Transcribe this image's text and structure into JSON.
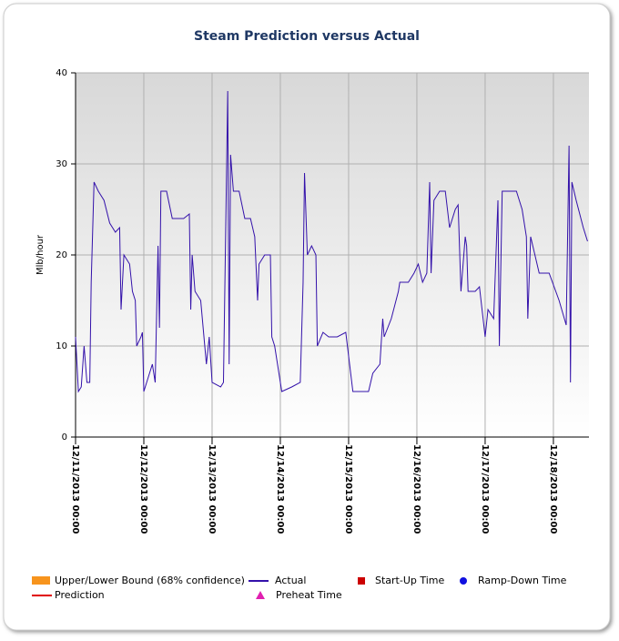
{
  "chart_data": {
    "type": "line",
    "title": "Steam Prediction versus Actual",
    "y_label": "Mlb/hour",
    "xlim": [
      "12/11/2013 00:00",
      "12/18/2013 12:30"
    ],
    "xticks": [
      "12/11/2013 00:00",
      "12/12/2013 00:00",
      "12/13/2013 00:00",
      "12/14/2013 00:00",
      "12/15/2013 00:00",
      "12/16/2013 00:00",
      "12/17/2013 00:00",
      "12/18/2013 00:00"
    ],
    "ylim": [
      0,
      40
    ],
    "yticks": [
      0,
      10,
      20,
      30,
      40
    ],
    "grid": true,
    "x": [
      "12/11/2013 00:00",
      "12/11/2013 01:00",
      "12/11/2013 02:00",
      "12/11/2013 03:00",
      "12/11/2013 04:00",
      "12/11/2013 05:00",
      "12/11/2013 05:30",
      "12/11/2013 06:30",
      "12/11/2013 08:00",
      "12/11/2013 10:00",
      "12/11/2013 12:00",
      "12/11/2013 14:00",
      "12/11/2013 15:30",
      "12/11/2013 16:00",
      "12/11/2013 17:00",
      "12/11/2013 19:00",
      "12/11/2013 20:00",
      "12/11/2013 21:00",
      "12/11/2013 21:30",
      "12/11/2013 23:00",
      "12/11/2013 23:30",
      "12/12/2013 00:00",
      "12/12/2013 02:00",
      "12/12/2013 03:00",
      "12/12/2013 04:00",
      "12/12/2013 05:00",
      "12/12/2013 05:30",
      "12/12/2013 06:00",
      "12/12/2013 08:00",
      "12/12/2013 10:00",
      "12/12/2013 14:00",
      "12/12/2013 16:00",
      "12/12/2013 16:30",
      "12/12/2013 17:00",
      "12/12/2013 18:00",
      "12/12/2013 20:00",
      "12/12/2013 22:00",
      "12/12/2013 23:00",
      "12/13/2013 00:00",
      "12/13/2013 03:00",
      "12/13/2013 04:00",
      "12/13/2013 05:30",
      "12/13/2013 06:00",
      "12/13/2013 06:30",
      "12/13/2013 07:30",
      "12/13/2013 09:30",
      "12/13/2013 11:30",
      "12/13/2013 13:30",
      "12/13/2013 15:00",
      "12/13/2013 16:00",
      "12/13/2013 16:30",
      "12/13/2013 18:30",
      "12/13/2013 20:30",
      "12/13/2013 21:00",
      "12/13/2013 22:00",
      "12/14/2013 00:30",
      "12/14/2013 04:00",
      "12/14/2013 07:00",
      "12/14/2013 08:00",
      "12/14/2013 08:30",
      "12/14/2013 09:30",
      "12/14/2013 11:00",
      "12/14/2013 12:30",
      "12/14/2013 13:00",
      "12/14/2013 15:00",
      "12/14/2013 17:00",
      "12/14/2013 20:00",
      "12/14/2013 23:00",
      "12/15/2013 01:30",
      "12/15/2013 04:00",
      "12/15/2013 07:00",
      "12/15/2013 08:30",
      "12/15/2013 11:00",
      "12/15/2013 12:00",
      "12/15/2013 12:30",
      "12/15/2013 15:00",
      "12/15/2013 17:30",
      "12/15/2013 18:00",
      "12/15/2013 21:00",
      "12/15/2013 23:00",
      "12/16/2013 00:30",
      "12/16/2013 02:00",
      "12/16/2013 03:30",
      "12/16/2013 04:30",
      "12/16/2013 05:00",
      "12/16/2013 06:00",
      "12/16/2013 08:00",
      "12/16/2013 10:00",
      "12/16/2013 11:30",
      "12/16/2013 13:30",
      "12/16/2013 14:30",
      "12/16/2013 15:30",
      "12/16/2013 17:00",
      "12/16/2013 17:30",
      "12/16/2013 18:00",
      "12/16/2013 20:30",
      "12/16/2013 22:00",
      "12/17/2013 00:00",
      "12/17/2013 01:00",
      "12/17/2013 03:00",
      "12/17/2013 04:30",
      "12/17/2013 05:00",
      "12/17/2013 06:00",
      "12/17/2013 08:30",
      "12/17/2013 11:00",
      "12/17/2013 13:00",
      "12/17/2013 14:30",
      "12/17/2013 15:00",
      "12/17/2013 16:00",
      "12/17/2013 17:30",
      "12/17/2013 19:00",
      "12/17/2013 22:30",
      "12/18/2013 02:00",
      "12/18/2013 04:30",
      "12/18/2013 05:30",
      "12/18/2013 06:00",
      "12/18/2013 06:30",
      "12/18/2013 08:00",
      "12/18/2013 10:30",
      "12/18/2013 12:00"
    ],
    "series": [
      {
        "name": "Actual",
        "color": "#3311aa",
        "values": [
          11,
          5,
          5.5,
          10,
          6,
          6,
          17,
          28,
          27,
          26,
          23.5,
          22.5,
          23,
          14,
          20,
          19,
          16,
          15,
          10,
          11,
          11.5,
          5,
          7,
          8,
          6,
          21,
          12,
          27,
          27,
          24,
          24,
          24.5,
          14,
          20,
          16,
          15,
          8,
          11,
          6,
          5.5,
          6,
          38,
          8,
          31,
          27,
          27,
          24,
          24,
          22,
          15,
          19,
          20,
          20,
          11,
          10,
          5,
          5.5,
          6,
          17,
          29,
          20,
          21,
          20,
          10,
          11.5,
          11,
          11,
          11.5,
          5,
          5,
          5,
          7,
          8,
          13,
          11,
          13,
          16,
          17,
          17,
          18,
          19,
          17,
          18,
          28,
          18,
          26,
          27,
          27,
          23,
          25,
          25.5,
          16,
          22,
          21,
          16,
          16,
          16.5,
          11,
          14,
          13,
          26,
          10,
          27,
          27,
          27,
          25,
          22,
          13,
          22,
          20,
          18,
          18,
          15,
          12.3,
          32,
          6,
          28,
          26,
          23,
          21.5
        ]
      }
    ],
    "legend": [
      {
        "name": "Upper/Lower Bound (68% confidence)",
        "color": "#f7941d",
        "symbol": "rect"
      },
      {
        "name": "Prediction",
        "color": "#e00000",
        "symbol": "line"
      },
      {
        "name": "Preheat Time",
        "color": "#e020b0",
        "symbol": "triangle"
      },
      {
        "name": "Start-Up Time",
        "color": "#cc0000",
        "symbol": "square"
      },
      {
        "name": "Ramp-Down Time",
        "color": "#1010e0",
        "symbol": "circle"
      }
    ]
  }
}
